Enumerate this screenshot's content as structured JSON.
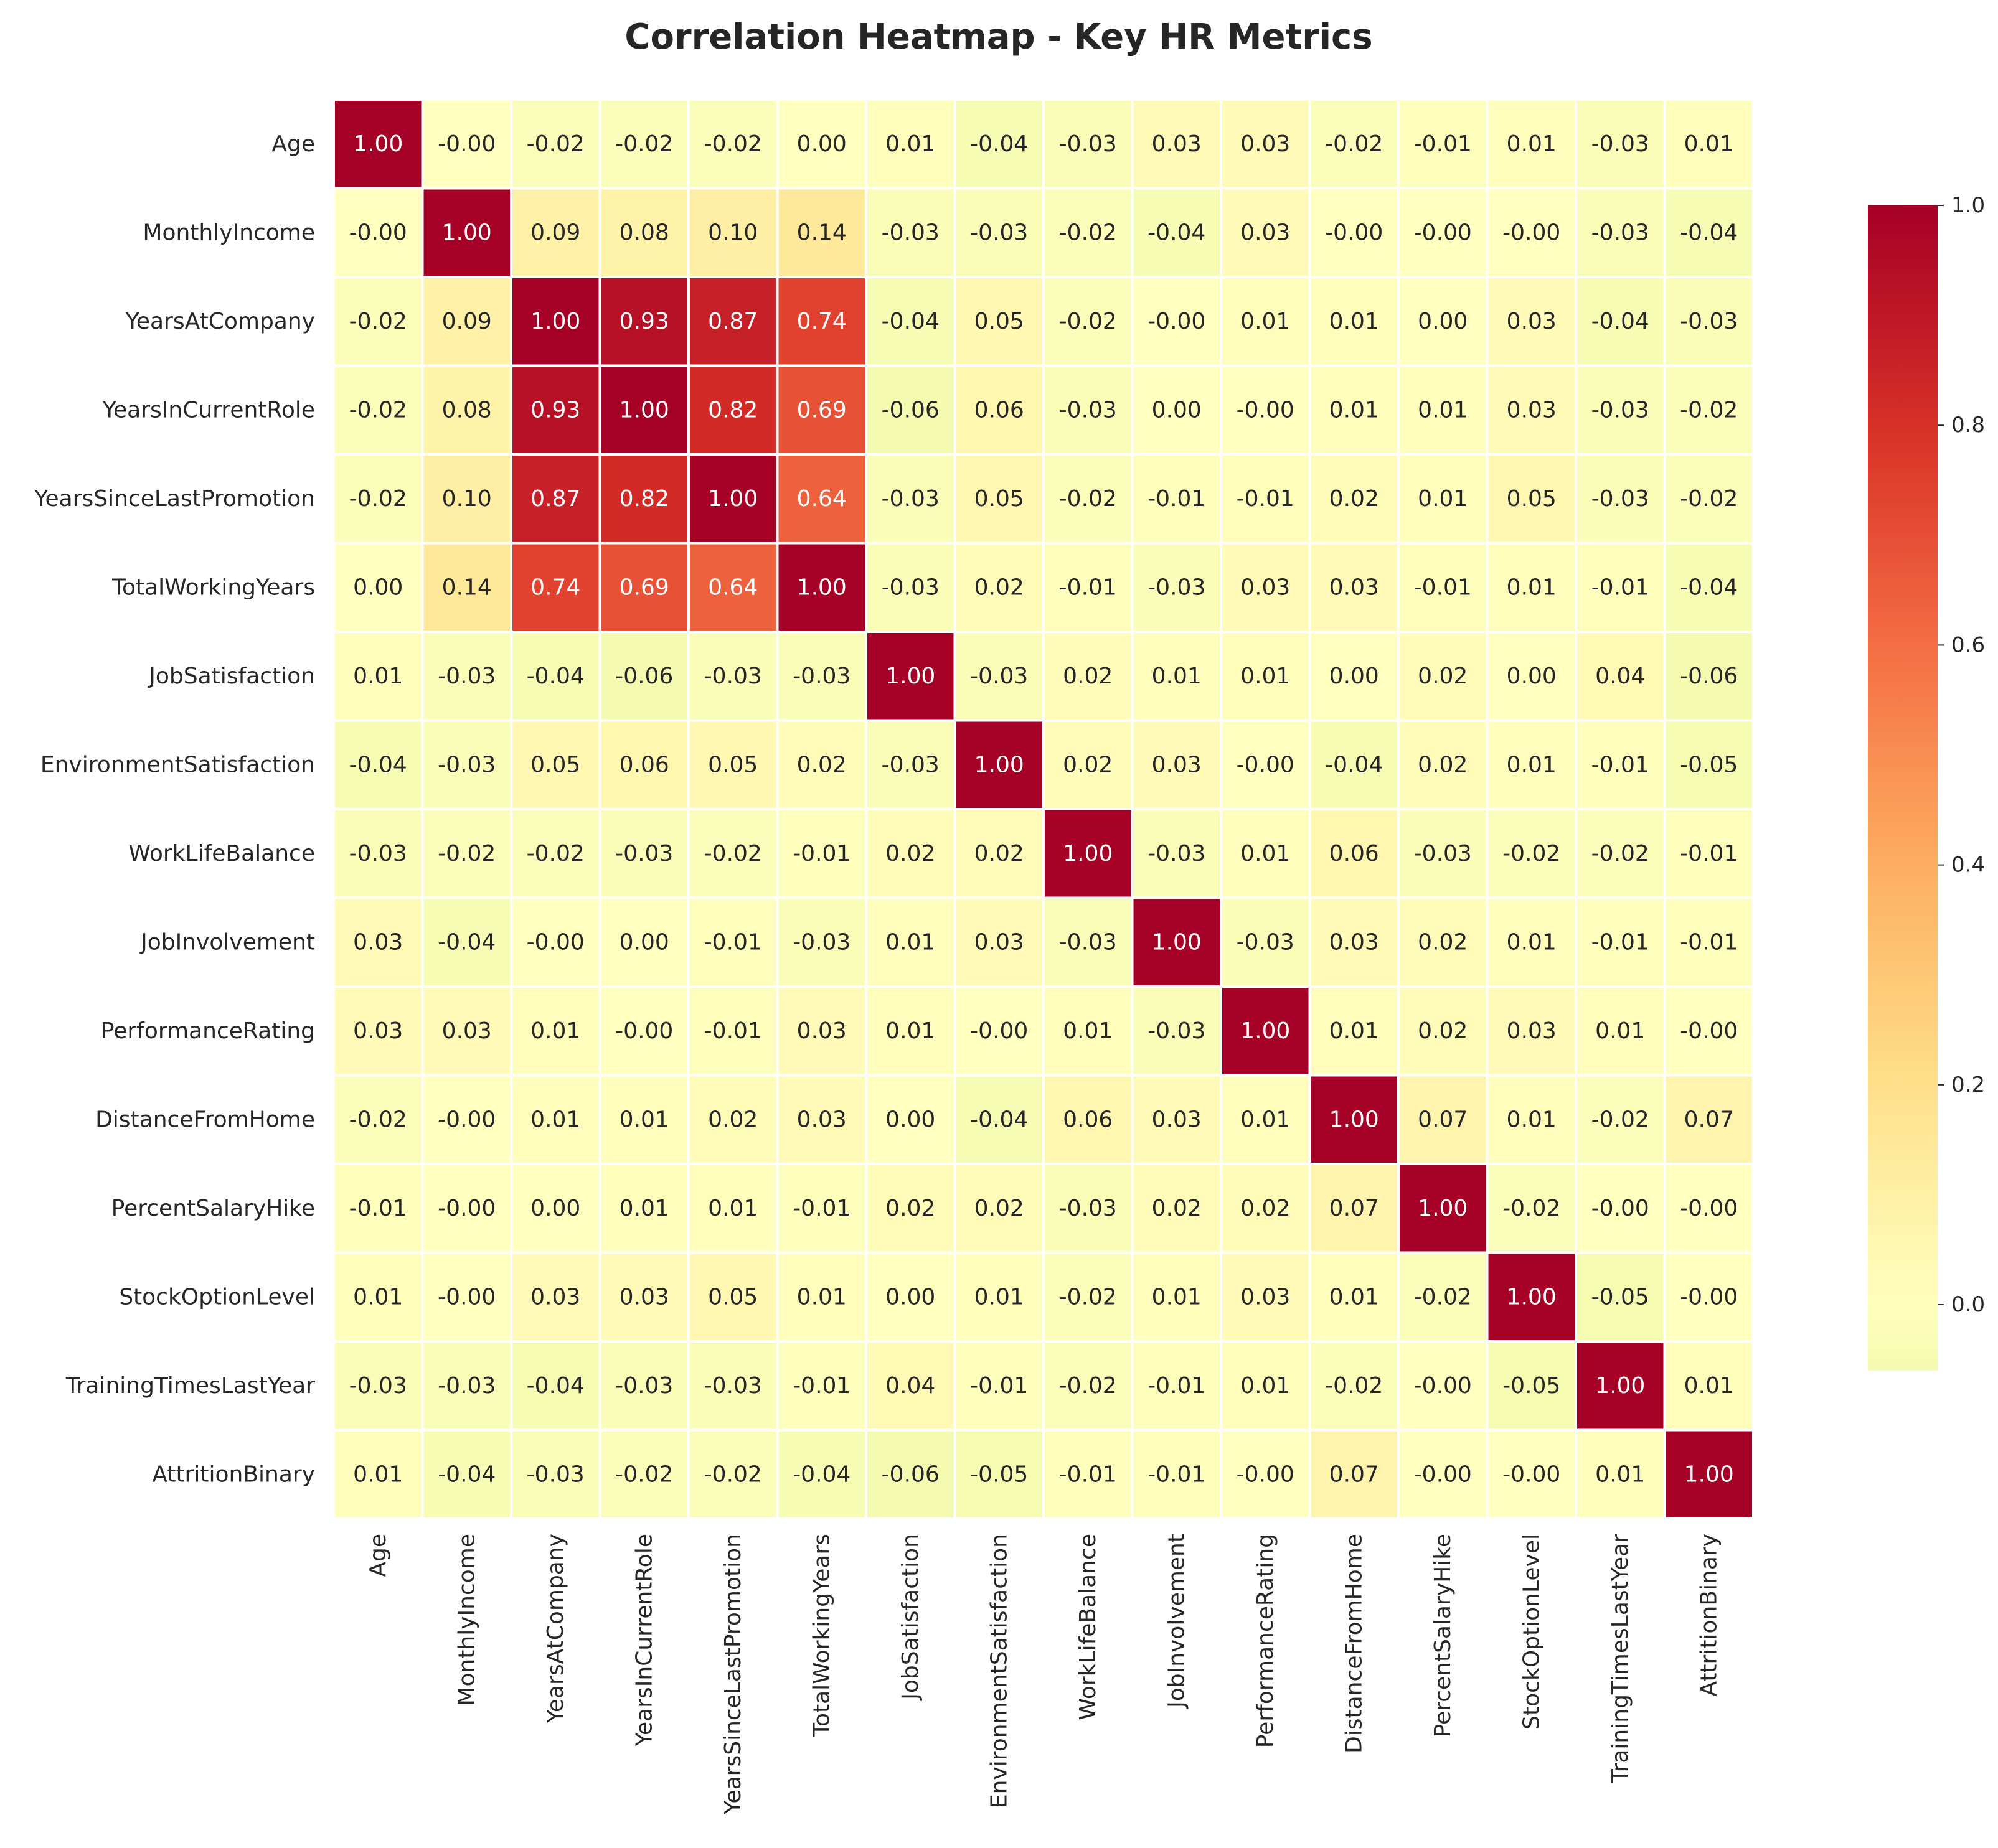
{
  "chart_data": {
    "type": "heatmap",
    "title": "Correlation Heatmap - Key HR Metrics",
    "labels": [
      "Age",
      "MonthlyIncome",
      "YearsAtCompany",
      "YearsInCurrentRole",
      "YearsSinceLastPromotion",
      "TotalWorkingYears",
      "JobSatisfaction",
      "EnvironmentSatisfaction",
      "WorkLifeBalance",
      "JobInvolvement",
      "PerformanceRating",
      "DistanceFromHome",
      "PercentSalaryHike",
      "StockOptionLevel",
      "TrainingTimesLastYear",
      "AttritionBinary"
    ],
    "matrix": [
      [
        "1.00",
        "-0.00",
        "-0.02",
        "-0.02",
        "-0.02",
        "0.00",
        "0.01",
        "-0.04",
        "-0.03",
        "0.03",
        "0.03",
        "-0.02",
        "-0.01",
        "0.01",
        "-0.03",
        "0.01"
      ],
      [
        "-0.00",
        "1.00",
        "0.09",
        "0.08",
        "0.10",
        "0.14",
        "-0.03",
        "-0.03",
        "-0.02",
        "-0.04",
        "0.03",
        "-0.00",
        "-0.00",
        "-0.00",
        "-0.03",
        "-0.04"
      ],
      [
        "-0.02",
        "0.09",
        "1.00",
        "0.93",
        "0.87",
        "0.74",
        "-0.04",
        "0.05",
        "-0.02",
        "-0.00",
        "0.01",
        "0.01",
        "0.00",
        "0.03",
        "-0.04",
        "-0.03"
      ],
      [
        "-0.02",
        "0.08",
        "0.93",
        "1.00",
        "0.82",
        "0.69",
        "-0.06",
        "0.06",
        "-0.03",
        "0.00",
        "-0.00",
        "0.01",
        "0.01",
        "0.03",
        "-0.03",
        "-0.02"
      ],
      [
        "-0.02",
        "0.10",
        "0.87",
        "0.82",
        "1.00",
        "0.64",
        "-0.03",
        "0.05",
        "-0.02",
        "-0.01",
        "-0.01",
        "0.02",
        "0.01",
        "0.05",
        "-0.03",
        "-0.02"
      ],
      [
        "0.00",
        "0.14",
        "0.74",
        "0.69",
        "0.64",
        "1.00",
        "-0.03",
        "0.02",
        "-0.01",
        "-0.03",
        "0.03",
        "0.03",
        "-0.01",
        "0.01",
        "-0.01",
        "-0.04"
      ],
      [
        "0.01",
        "-0.03",
        "-0.04",
        "-0.06",
        "-0.03",
        "-0.03",
        "1.00",
        "-0.03",
        "0.02",
        "0.01",
        "0.01",
        "0.00",
        "0.02",
        "0.00",
        "0.04",
        "-0.06"
      ],
      [
        "-0.04",
        "-0.03",
        "0.05",
        "0.06",
        "0.05",
        "0.02",
        "-0.03",
        "1.00",
        "0.02",
        "0.03",
        "-0.00",
        "-0.04",
        "0.02",
        "0.01",
        "-0.01",
        "-0.05"
      ],
      [
        "-0.03",
        "-0.02",
        "-0.02",
        "-0.03",
        "-0.02",
        "-0.01",
        "0.02",
        "0.02",
        "1.00",
        "-0.03",
        "0.01",
        "0.06",
        "-0.03",
        "-0.02",
        "-0.02",
        "-0.01"
      ],
      [
        "0.03",
        "-0.04",
        "-0.00",
        "0.00",
        "-0.01",
        "-0.03",
        "0.01",
        "0.03",
        "-0.03",
        "1.00",
        "-0.03",
        "0.03",
        "0.02",
        "0.01",
        "-0.01",
        "-0.01"
      ],
      [
        "0.03",
        "0.03",
        "0.01",
        "-0.00",
        "-0.01",
        "0.03",
        "0.01",
        "-0.00",
        "0.01",
        "-0.03",
        "1.00",
        "0.01",
        "0.02",
        "0.03",
        "0.01",
        "-0.00"
      ],
      [
        "-0.02",
        "-0.00",
        "0.01",
        "0.01",
        "0.02",
        "0.03",
        "0.00",
        "-0.04",
        "0.06",
        "0.03",
        "0.01",
        "1.00",
        "0.07",
        "0.01",
        "-0.02",
        "0.07"
      ],
      [
        "-0.01",
        "-0.00",
        "0.00",
        "0.01",
        "0.01",
        "-0.01",
        "0.02",
        "0.02",
        "-0.03",
        "0.02",
        "0.02",
        "0.07",
        "1.00",
        "-0.02",
        "-0.00",
        "-0.00"
      ],
      [
        "0.01",
        "-0.00",
        "0.03",
        "0.03",
        "0.05",
        "0.01",
        "0.00",
        "0.01",
        "-0.02",
        "0.01",
        "0.03",
        "0.01",
        "-0.02",
        "1.00",
        "-0.05",
        "-0.00"
      ],
      [
        "-0.03",
        "-0.03",
        "-0.04",
        "-0.03",
        "-0.03",
        "-0.01",
        "0.04",
        "-0.01",
        "-0.02",
        "-0.01",
        "0.01",
        "-0.02",
        "-0.00",
        "-0.05",
        "1.00",
        "0.01"
      ],
      [
        "0.01",
        "-0.04",
        "-0.03",
        "-0.02",
        "-0.02",
        "-0.04",
        "-0.06",
        "-0.05",
        "-0.01",
        "-0.01",
        "-0.00",
        "0.07",
        "-0.00",
        "-0.00",
        "0.01",
        "1.00"
      ]
    ],
    "colormap": "RdYlGn_r",
    "vmin": -0.06,
    "vmax": 1.0,
    "colorbar_ticks": [
      "0.0",
      "0.2",
      "0.4",
      "0.6",
      "0.8",
      "1.0"
    ],
    "annotated": true,
    "cell_separator_color": "#ffffff"
  }
}
